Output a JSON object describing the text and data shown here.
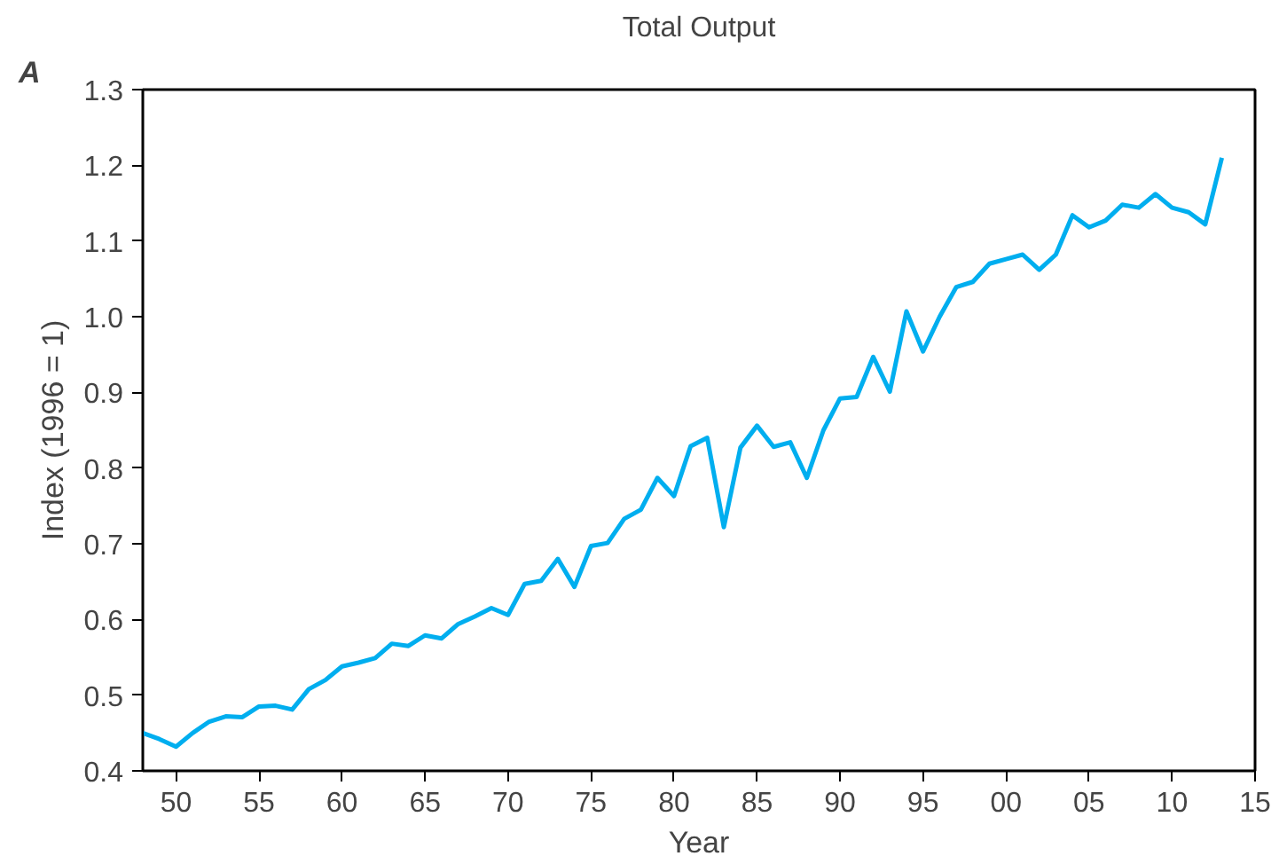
{
  "chart_data": {
    "type": "line",
    "title": "Total Output",
    "xlabel": "Year",
    "ylabel": "Index (1996 = 1)",
    "annotations": [
      "A"
    ],
    "x": [
      1948,
      1949,
      1950,
      1951,
      1952,
      1953,
      1954,
      1955,
      1956,
      1957,
      1958,
      1959,
      1960,
      1961,
      1962,
      1963,
      1964,
      1965,
      1966,
      1967,
      1968,
      1969,
      1970,
      1971,
      1972,
      1973,
      1974,
      1975,
      1976,
      1977,
      1978,
      1979,
      1980,
      1981,
      1982,
      1983,
      1984,
      1985,
      1986,
      1987,
      1988,
      1989,
      1990,
      1991,
      1992,
      1993,
      1994,
      1995,
      1996,
      1997,
      1998,
      1999,
      2000,
      2001,
      2002,
      2003,
      2004,
      2005,
      2006,
      2007,
      2008,
      2009,
      2010,
      2011,
      2012,
      2013
    ],
    "series": [
      {
        "color": "#00aeef",
        "values": [
          0.45,
          0.442,
          0.432,
          0.45,
          0.465,
          0.472,
          0.471,
          0.485,
          0.486,
          0.481,
          0.508,
          0.52,
          0.538,
          0.543,
          0.549,
          0.568,
          0.565,
          0.579,
          0.575,
          0.594,
          0.604,
          0.615,
          0.606,
          0.647,
          0.651,
          0.68,
          0.643,
          0.697,
          0.701,
          0.733,
          0.745,
          0.787,
          0.763,
          0.829,
          0.84,
          0.722,
          0.827,
          0.856,
          0.828,
          0.834,
          0.787,
          0.85,
          0.892,
          0.894,
          0.947,
          0.901,
          1.007,
          0.954,
          1.0,
          1.039,
          1.046,
          1.07,
          1.076,
          1.082,
          1.062,
          1.082,
          1.134,
          1.118,
          1.127,
          1.148,
          1.144,
          1.162,
          1.144,
          1.138,
          1.122,
          1.21
        ]
      }
    ],
    "xlim": [
      1948,
      2015
    ],
    "xticks": [
      {
        "value": 1950,
        "label": "50"
      },
      {
        "value": 1955,
        "label": "55"
      },
      {
        "value": 1960,
        "label": "60"
      },
      {
        "value": 1965,
        "label": "65"
      },
      {
        "value": 1970,
        "label": "70"
      },
      {
        "value": 1975,
        "label": "75"
      },
      {
        "value": 1980,
        "label": "80"
      },
      {
        "value": 1985,
        "label": "85"
      },
      {
        "value": 1990,
        "label": "90"
      },
      {
        "value": 1995,
        "label": "95"
      },
      {
        "value": 2000,
        "label": "00"
      },
      {
        "value": 2005,
        "label": "05"
      },
      {
        "value": 2010,
        "label": "10"
      },
      {
        "value": 2015,
        "label": "15"
      }
    ],
    "ylim": [
      0.4,
      1.3
    ],
    "yticks": [
      {
        "value": 0.4,
        "label": "0.4"
      },
      {
        "value": 0.5,
        "label": "0.5"
      },
      {
        "value": 0.6,
        "label": "0.6"
      },
      {
        "value": 0.7,
        "label": "0.7"
      },
      {
        "value": 0.8,
        "label": "0.8"
      },
      {
        "value": 0.9,
        "label": "0.9"
      },
      {
        "value": 1.0,
        "label": "1.0"
      },
      {
        "value": 1.1,
        "label": "1.1"
      },
      {
        "value": 1.2,
        "label": "1.2"
      },
      {
        "value": 1.3,
        "label": "1.3"
      }
    ],
    "grid": false,
    "marker": "none",
    "line_style": "solid"
  }
}
